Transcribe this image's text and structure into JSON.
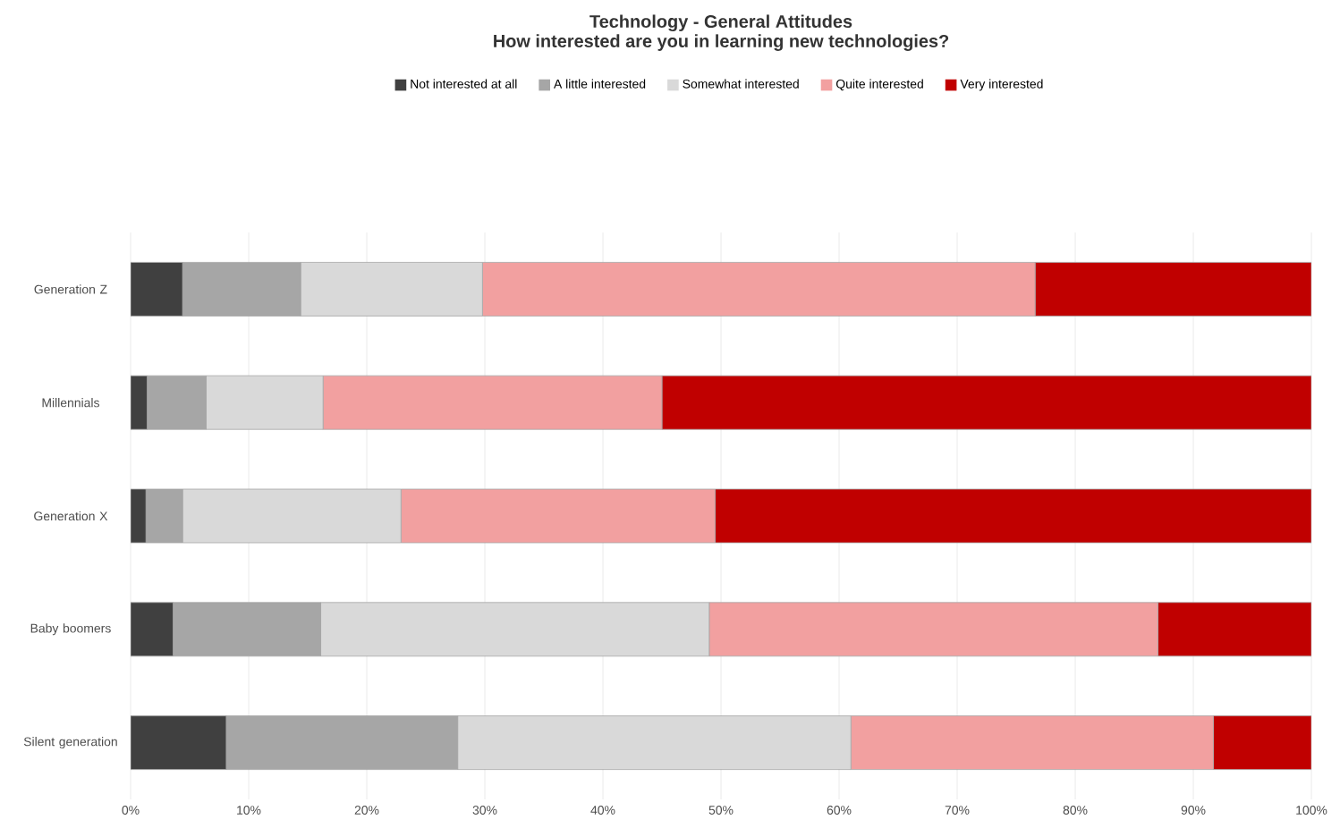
{
  "chart_data": {
    "type": "bar",
    "orientation": "horizontal",
    "stacked": true,
    "title": "Technology - General Attitudes",
    "subtitle": "How interested are you in learning new technologies?",
    "categories": [
      "Generation Z",
      "Millennials",
      "Generation X",
      "Baby boomers",
      "Silent generation"
    ],
    "series": [
      {
        "name": "Not interested at all",
        "color": "#404040",
        "values": [
          4.4,
          1.4,
          1.3,
          3.6,
          8.1
        ]
      },
      {
        "name": "A little interested",
        "color": "#a6a6a6",
        "values": [
          10,
          5,
          3.1,
          12.5,
          19.6
        ]
      },
      {
        "name": "Somewhat interested",
        "color": "#d9d9d9",
        "values": [
          15.4,
          9.9,
          18.5,
          32.9,
          33.3
        ]
      },
      {
        "name": "Quite interested",
        "color": "#f2a0a0",
        "values": [
          46.8,
          28.7,
          26.6,
          38,
          30.7
        ]
      },
      {
        "name": "Very interested",
        "color": "#c00000",
        "values": [
          23.4,
          55,
          50.5,
          13,
          8.3
        ]
      }
    ],
    "xlim": [
      0,
      100
    ],
    "xticks": [
      {
        "value": 0,
        "label": "0%"
      },
      {
        "value": 10,
        "label": "10%"
      },
      {
        "value": 20,
        "label": "20%"
      },
      {
        "value": 30,
        "label": "30%"
      },
      {
        "value": 40,
        "label": "40%"
      },
      {
        "value": 50,
        "label": "50%"
      },
      {
        "value": 60,
        "label": "60%"
      },
      {
        "value": 70,
        "label": "70%"
      },
      {
        "value": 80,
        "label": "80%"
      },
      {
        "value": 90,
        "label": "90%"
      },
      {
        "value": 100,
        "label": "100%"
      }
    ],
    "grid": "x",
    "legend": "top"
  }
}
